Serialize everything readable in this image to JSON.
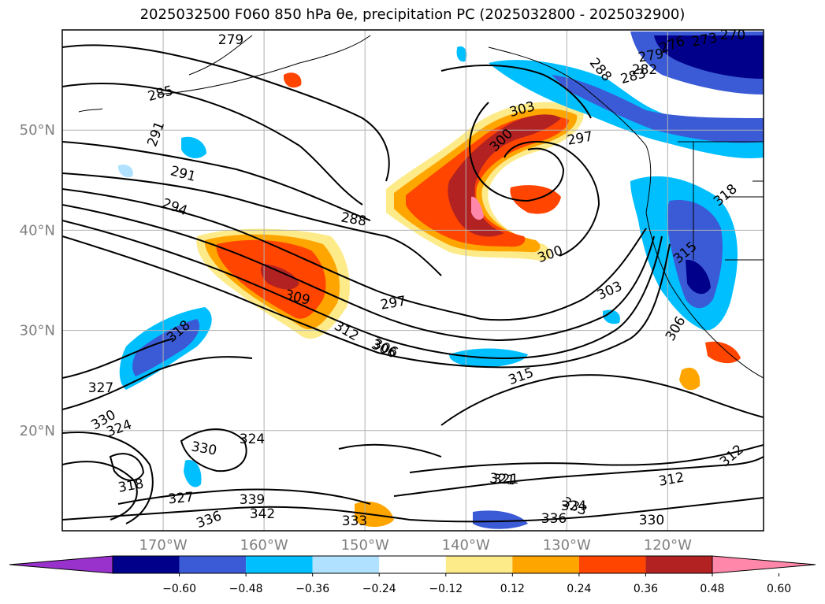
{
  "title": "2025032500 F060 850 hPa θe, precipitation PC (2025032800 - 2025032900)",
  "map": {
    "lat_labels": [
      {
        "value": 50,
        "label": "50°N"
      },
      {
        "value": 40,
        "label": "40°N"
      },
      {
        "value": 30,
        "label": "30°N"
      },
      {
        "value": 20,
        "label": "20°N"
      }
    ],
    "lon_labels": [
      {
        "value": -170,
        "label": "170°W"
      },
      {
        "value": -160,
        "label": "160°W"
      },
      {
        "value": -150,
        "label": "150°W"
      },
      {
        "value": -140,
        "label": "140°W"
      },
      {
        "value": -130,
        "label": "130°W"
      },
      {
        "value": -120,
        "label": "120°W"
      }
    ],
    "contour_labels": [
      "279",
      "285",
      "291",
      "291",
      "294",
      "288",
      "297",
      "306",
      "309",
      "312",
      "306",
      "303",
      "300",
      "300",
      "297",
      "303",
      "288",
      "283",
      "282",
      "279",
      "276",
      "273",
      "270",
      "315",
      "318",
      "327",
      "330",
      "324",
      "330",
      "324",
      "321",
      "318",
      "327",
      "339",
      "342",
      "336",
      "333",
      "336",
      "333",
      "324",
      "321",
      "312",
      "330",
      "312",
      "306",
      "315",
      "318"
    ]
  },
  "colorbar": {
    "ticks": [
      "−0.60",
      "−0.48",
      "−0.36",
      "−0.24",
      "−0.12",
      "0.12",
      "0.24",
      "0.36",
      "0.48",
      "0.60"
    ],
    "colors": [
      "#9932cc",
      "#00008b",
      "#3b5bd6",
      "#00bfff",
      "#b0e2ff",
      "#ffffff",
      "#fdeb8a",
      "#ffa500",
      "#ff4500",
      "#b22222",
      "#ff88aa"
    ]
  }
}
